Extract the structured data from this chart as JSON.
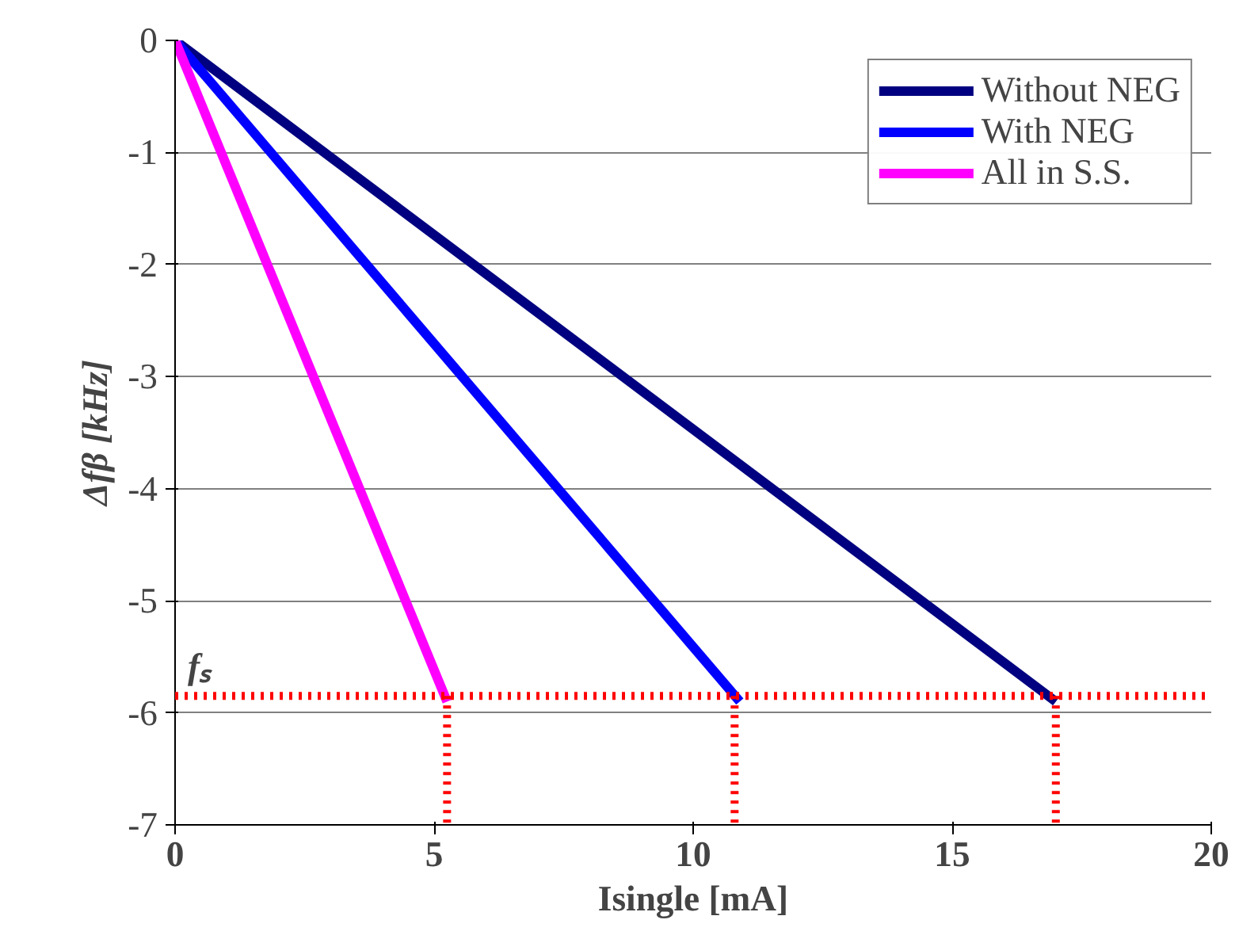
{
  "chart_data": {
    "type": "line",
    "xlabel": "Isingle [mA]",
    "ylabel": "Δfβ [kHz]",
    "xlim": [
      0,
      20
    ],
    "xticks": [
      0,
      5,
      10,
      15,
      20
    ],
    "ylim": [
      -7,
      0
    ],
    "yticks": [
      0,
      -1,
      -2,
      -3,
      -4,
      -5,
      -6,
      -7
    ],
    "grid": "y",
    "legend": "top right",
    "marker": "none",
    "line_style": "solid",
    "series": [
      {
        "name": "Without NEG",
        "color": "#000080",
        "x": [
          0,
          17
        ],
        "values": [
          0,
          -5.9
        ]
      },
      {
        "name": "With NEG",
        "color": "#0000ff",
        "x": [
          0,
          10.9
        ],
        "values": [
          0,
          -5.9
        ]
      },
      {
        "name": "All in S.S.",
        "color": "#ff00ff",
        "x": [
          0,
          5.25
        ],
        "values": [
          0,
          -5.9
        ]
      },
      {
        "color": "#ff0000",
        "x": [
          5.25,
          5.25
        ],
        "values": [
          -5.85,
          -7
        ],
        "line_style": "dotted"
      },
      {
        "color": "#ff0000",
        "x": [
          10.8,
          10.8
        ],
        "values": [
          -5.85,
          -7
        ],
        "line_style": "dotted"
      },
      {
        "color": "#ff0000",
        "x": [
          17,
          17
        ],
        "values": [
          -5.85,
          -7
        ],
        "line_style": "dotted"
      }
    ],
    "ref_lines": [
      {
        "axis": "y",
        "value": -5.85,
        "label": "fₛ",
        "color": "#ff0000",
        "line_style": "dotted"
      }
    ]
  }
}
